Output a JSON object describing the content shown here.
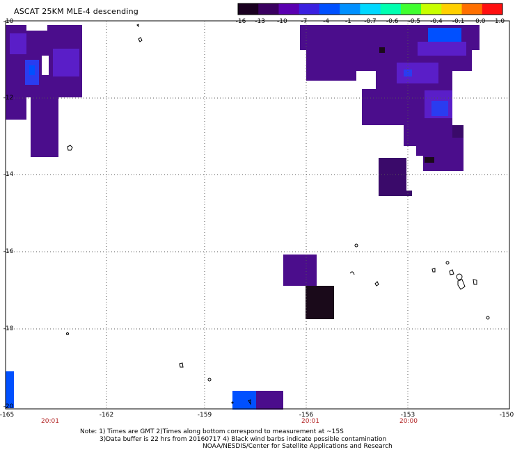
{
  "title": "ASCAT 25KM MLE-4 descending",
  "colorbar": {
    "labels": [
      "-16",
      "-13",
      "-10",
      "-7",
      "-4",
      "-1",
      "-0.7",
      "-0.6",
      "-0.5",
      "-0.4",
      "-0.1",
      "0.0",
      "1.0"
    ],
    "colors": [
      "#1a0020",
      "#3a0060",
      "#5a00b0",
      "#3a20e0",
      "#0050ff",
      "#0090ff",
      "#00d8ff",
      "#00ffb0",
      "#40ff30",
      "#c8ff00",
      "#ffd000",
      "#ff7000",
      "#ff1010"
    ]
  },
  "map": {
    "lat_labels": [
      "-10",
      "-12",
      "-14",
      "-16",
      "-18",
      "-20"
    ],
    "lon_labels": [
      "-165",
      "-162",
      "-159",
      "-156",
      "-153",
      "-150"
    ],
    "time_labels": [
      {
        "text": "20:01",
        "lon": -163.8
      },
      {
        "text": "20:01",
        "lon": -155.7
      },
      {
        "text": "20:00",
        "lon": -152.7
      }
    ],
    "lat_range": [
      -20,
      -10
    ],
    "lon_range": [
      -165,
      -150
    ],
    "grid": true,
    "colors": {
      "purple": "#4b0d8c",
      "dark_purple": "#3a0a6a",
      "very_dark": "#1a0a1a",
      "blue": "#0050ff",
      "mid_blue": "#2a3cf0",
      "violet": "#5a1ec8"
    }
  },
  "notes": [
    "Note: 1) Times are GMT 2)Times along bottom correspond to measurement at ~15S",
    "3)Data buffer is 22 hrs from 20160717 4) Black wind barbs indicate possible contamination",
    "NOAA/NESDIS/Center for Satellite Applications and Research"
  ]
}
